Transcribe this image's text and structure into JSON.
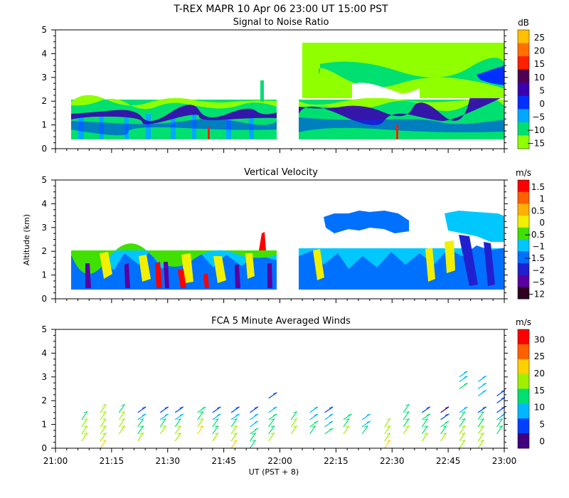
{
  "header": {
    "title": "T-REX  MAPR 10 Apr 06  23:00 UT  15:00  PST"
  },
  "chart_data": [
    {
      "type": "heatmap",
      "title": "Signal to Noise Ratio",
      "xlabel": "",
      "ylabel": "",
      "x_ticks": [
        "21:00",
        "21:15",
        "21:30",
        "21:45",
        "22:00",
        "22:15",
        "22:30",
        "22:45",
        "23:00"
      ],
      "ylim": [
        0,
        5
      ],
      "y_ticks": [
        "0",
        "1",
        "2",
        "3",
        "4",
        "5"
      ],
      "colorbar": {
        "unit": "dB",
        "labels": [
          "25",
          "20",
          "15",
          "10",
          "5",
          "0",
          "−5",
          "−10",
          "−15"
        ],
        "colors": [
          "#ffc000",
          "#ff7000",
          "#ff2000",
          "#500050",
          "#3a00b0",
          "#0030ff",
          "#00a8ff",
          "#00e070",
          "#90ff00"
        ]
      }
    },
    {
      "type": "heatmap",
      "title": "Vertical Velocity",
      "xlabel": "",
      "ylabel": "Altitude (km)",
      "x_ticks": [
        "21:00",
        "21:15",
        "21:30",
        "21:45",
        "22:00",
        "22:15",
        "22:30",
        "22:45",
        "23:00"
      ],
      "ylim": [
        0,
        5
      ],
      "y_ticks": [
        "0",
        "1",
        "2",
        "3",
        "4",
        "5"
      ],
      "colorbar": {
        "unit": "m/s",
        "labels": [
          "1.5",
          "1",
          "0.5",
          "0",
          "−0.5",
          "−1",
          "−1.5",
          "−2",
          "−5",
          "−12"
        ],
        "colors": [
          "#ff0000",
          "#ff6000",
          "#ffb000",
          "#f0f000",
          "#40e000",
          "#00c8ff",
          "#0070ff",
          "#2020d0",
          "#5a00a0",
          "#300020"
        ]
      }
    },
    {
      "type": "scatter",
      "title": "FCA 5 Minute Averaged Winds",
      "xlabel": "UT  (PST + 8)",
      "ylabel": "",
      "x_ticks": [
        "21:00",
        "21:15",
        "21:30",
        "21:45",
        "22:00",
        "22:15",
        "22:30",
        "22:45",
        "23:00"
      ],
      "ylim": [
        0,
        5
      ],
      "y_ticks": [
        "0",
        "1",
        "2",
        "3",
        "4",
        "5"
      ],
      "colorbar": {
        "unit": "m/s",
        "labels": [
          "30",
          "25",
          "20",
          "15",
          "10",
          "5",
          "0"
        ],
        "colors": [
          "#ff0000",
          "#ff6000",
          "#ffd000",
          "#a0f000",
          "#00e070",
          "#00b8ff",
          "#0040ff",
          "#400080"
        ]
      },
      "wind_profiles": [
        {
          "time_min": 7,
          "heights": [
            0.3,
            0.6,
            0.9,
            1.2
          ],
          "speeds": [
            16,
            15,
            14,
            13
          ]
        },
        {
          "time_min": 12,
          "heights": [
            0,
            0.3,
            0.6,
            0.9,
            1.2,
            1.5
          ],
          "speeds": [
            20,
            17,
            16,
            15,
            14,
            14
          ]
        },
        {
          "time_min": 17,
          "heights": [
            0.6,
            0.9,
            1.2,
            1.5
          ],
          "speeds": [
            15,
            14,
            14,
            13
          ]
        },
        {
          "time_min": 22,
          "heights": [
            0.3,
            0.6,
            0.9,
            1.2,
            1.5
          ],
          "speeds": [
            15,
            13,
            12,
            9,
            5
          ]
        },
        {
          "time_min": 28,
          "heights": [
            0.6,
            0.9,
            1.2,
            1.5
          ],
          "speeds": [
            14,
            12,
            8,
            5
          ]
        },
        {
          "time_min": 32,
          "heights": [
            0.3,
            0.6,
            0.9,
            1.2,
            1.5
          ],
          "speeds": [
            16,
            14,
            12,
            8,
            5
          ]
        },
        {
          "time_min": 38,
          "heights": [
            0.6,
            0.9,
            1.2,
            1.5
          ],
          "speeds": [
            18,
            15,
            13,
            10
          ]
        },
        {
          "time_min": 42,
          "heights": [
            0.3,
            0.6,
            0.9,
            1.2,
            1.5
          ],
          "speeds": [
            14,
            13,
            11,
            8,
            7
          ]
        },
        {
          "time_min": 47,
          "heights": [
            0,
            0.3,
            0.6,
            0.9,
            1.2,
            1.5
          ],
          "speeds": [
            19,
            16,
            14,
            12,
            9,
            6
          ]
        },
        {
          "time_min": 52,
          "heights": [
            0,
            0.3,
            0.6,
            0.9,
            1.2,
            1.5
          ],
          "speeds": [
            12,
            11,
            10,
            9,
            8,
            6
          ]
        },
        {
          "time_min": 57,
          "heights": [
            0.3,
            0.6,
            0.9,
            1.2,
            1.5,
            2.1
          ],
          "speeds": [
            14,
            13,
            12,
            10,
            9,
            5
          ]
        },
        {
          "time_min": 63,
          "heights": [
            0.6,
            0.9,
            1.2
          ],
          "speeds": [
            15,
            14,
            13
          ]
        },
        {
          "time_min": 68,
          "heights": [
            0.6,
            0.9,
            1.2,
            1.5
          ],
          "speeds": [
            11,
            10,
            9,
            8
          ]
        },
        {
          "time_min": 72,
          "heights": [
            0.6,
            0.9,
            1.2,
            1.5
          ],
          "speeds": [
            10,
            9,
            8,
            7
          ]
        },
        {
          "time_min": 77,
          "heights": [
            0.6,
            0.9,
            1.2
          ],
          "speeds": [
            14,
            12,
            10
          ]
        },
        {
          "time_min": 82,
          "heights": [
            0.6,
            0.9,
            1.2
          ],
          "speeds": [
            11,
            9,
            8
          ]
        },
        {
          "time_min": 88,
          "heights": [
            0,
            0.3,
            0.6,
            0.9
          ],
          "speeds": [
            18,
            16,
            15,
            14
          ]
        },
        {
          "time_min": 93,
          "heights": [
            0.6,
            0.9,
            1.2,
            1.5
          ],
          "speeds": [
            14,
            13,
            12,
            11
          ]
        },
        {
          "time_min": 98,
          "heights": [
            0.3,
            0.6,
            0.9,
            1.2,
            1.5
          ],
          "speeds": [
            15,
            13,
            12,
            10,
            5
          ]
        },
        {
          "time_min": 103,
          "heights": [
            0.3,
            0.6,
            0.9,
            1.2,
            1.5
          ],
          "speeds": [
            14,
            12,
            10,
            6,
            4
          ]
        },
        {
          "time_min": 108,
          "heights": [
            0,
            0.3,
            0.6,
            0.9,
            1.2,
            1.5,
            2.5,
            2.8,
            3.0
          ],
          "speeds": [
            16,
            15,
            14,
            13,
            11,
            8,
            10,
            9,
            8
          ]
        },
        {
          "time_min": 113,
          "heights": [
            0,
            0.3,
            0.6,
            0.9,
            1.2,
            1.5,
            2.2,
            2.5,
            2.8
          ],
          "speeds": [
            16,
            15,
            14,
            13,
            11,
            7,
            9,
            8,
            8
          ]
        },
        {
          "time_min": 118,
          "heights": [
            0.6,
            0.9,
            1.2,
            1.5,
            1.9,
            2.2
          ],
          "speeds": [
            12,
            11,
            9,
            6,
            5,
            5
          ]
        }
      ]
    }
  ]
}
